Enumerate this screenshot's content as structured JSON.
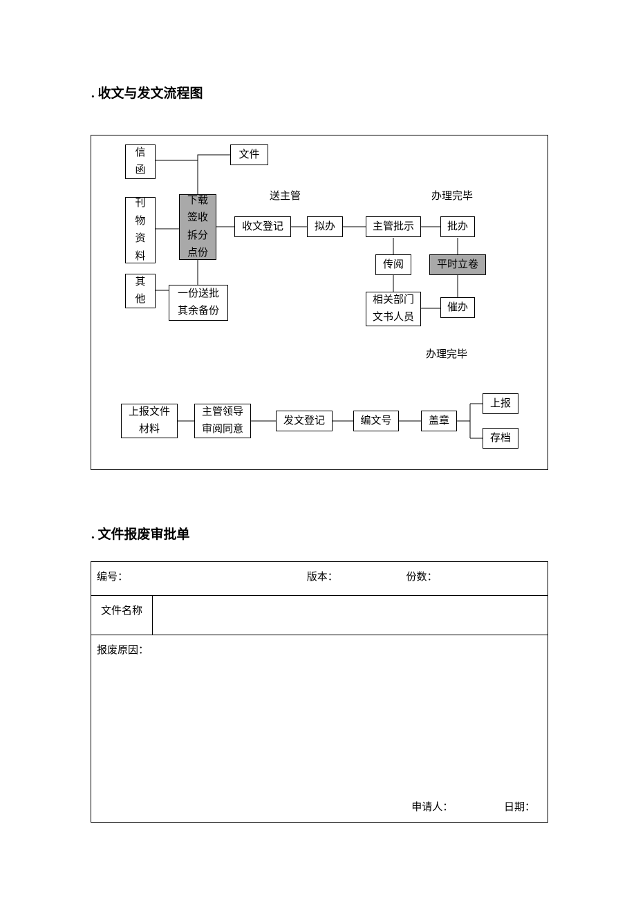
{
  "headings": {
    "h1": ". 收文与发文流程图",
    "h2": ". 文件报废审批单"
  },
  "flow": {
    "nodes": {
      "letter": "信\n函",
      "file": "文件",
      "publication": "刊\n物\n资\n料",
      "other": "其\n他",
      "download": "下载\n签收\n拆分\n点份",
      "copies": "一份送批\n其余备份",
      "register_in": "收文登记",
      "draft": "拟办",
      "approve": "主管批示",
      "handle": "批办",
      "circulate": "传阅",
      "archive_temp": "平时立卷",
      "related": "相关部门\n文书人员",
      "urge": "催办",
      "report_material": "上报文件\n材料",
      "leader_review": "主管领导\n审阅同意",
      "register_out": "发文登记",
      "number": "编文号",
      "stamp": "盖章",
      "report_up": "上报",
      "file_away": "存档"
    },
    "labels": {
      "send_supervisor": "送主管",
      "done1": "办理完毕",
      "done2": "办理完毕"
    },
    "colors": {
      "line": "#000000",
      "shaded_fill": "#a9a9a9",
      "background": "#ffffff"
    }
  },
  "form": {
    "row1": {
      "serial": "编号：",
      "version": "版本：",
      "copies": "份数："
    },
    "row2_label": "文件名称",
    "row3_label": "报废原因：",
    "row3_footer": {
      "applicant": "申请人：",
      "date": "日期："
    }
  }
}
